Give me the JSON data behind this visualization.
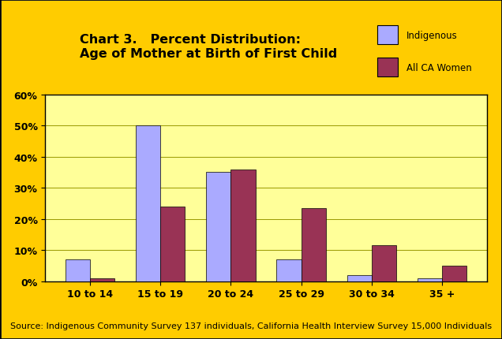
{
  "title_line1": "Chart 3.   Percent Distribution:",
  "title_line2": "Age of Mother at Birth of First Child",
  "categories": [
    "10 to 14",
    "15 to 19",
    "20 to 24",
    "25 to 29",
    "30 to 34",
    "35 +"
  ],
  "indigenous": [
    7,
    50,
    35,
    7,
    2,
    1
  ],
  "all_ca_women": [
    1,
    24,
    36,
    23.5,
    11.5,
    5
  ],
  "bar_color_indigenous": "#aaaaff",
  "bar_color_ca_women": "#993355",
  "background_outer": "#ffcc00",
  "background_plot": "#ffff99",
  "ylim": [
    0,
    60
  ],
  "yticks": [
    0,
    10,
    20,
    30,
    40,
    50,
    60
  ],
  "ytick_labels": [
    "0%",
    "10%",
    "20%",
    "30%",
    "40%",
    "50%",
    "60%"
  ],
  "legend_labels": [
    "Indigenous",
    "All CA Women"
  ],
  "source_text": "Source: Indigenous Community Survey 137 individuals, California Health Interview Survey 15,000 Individuals",
  "bar_width": 0.35,
  "title_fontsize": 11.5,
  "tick_fontsize": 9,
  "legend_fontsize": 8.5,
  "source_fontsize": 8
}
